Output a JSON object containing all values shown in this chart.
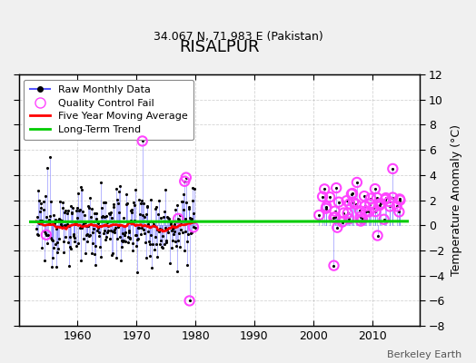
{
  "title": "RISALPUR",
  "subtitle": "34.067 N, 71.983 E (Pakistan)",
  "ylabel_right": "Temperature Anomaly (°C)",
  "credit": "Berkeley Earth",
  "xlim": [
    1950,
    2018
  ],
  "ylim": [
    -8,
    12
  ],
  "yticks": [
    -8,
    -6,
    -4,
    -2,
    0,
    2,
    4,
    6,
    8,
    10,
    12
  ],
  "xticks": [
    1960,
    1970,
    1980,
    1990,
    2000,
    2010
  ],
  "background_color": "#f0f0f0",
  "plot_background": "#ffffff",
  "raw_stem_color": "#5555ff",
  "raw_marker_color": "black",
  "qc_color": "#ff44ff",
  "moving_avg_color": "red",
  "trend_color": "#00cc00",
  "trend_x": [
    1952,
    2016
  ],
  "trend_y": [
    0.28,
    0.32
  ]
}
